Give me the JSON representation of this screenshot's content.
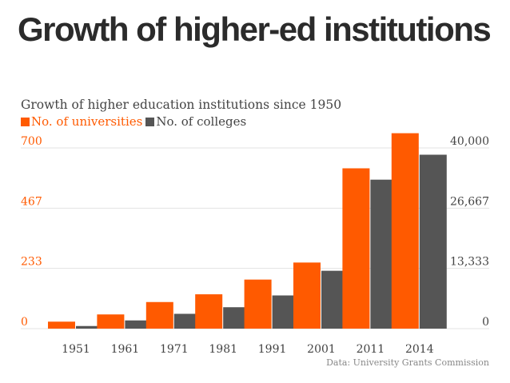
{
  "header": {
    "title": "Growth of higher-ed institutions"
  },
  "chart_data": {
    "type": "bar",
    "title": "Growth of higher education institutions since 1950",
    "categories": [
      "1951",
      "1961",
      "1971",
      "1981",
      "1991",
      "2001",
      "2011",
      "2014"
    ],
    "series": [
      {
        "name": "No. of universities",
        "axis": "left",
        "color": "#ff5a00",
        "values": [
          27,
          55,
          103,
          133,
          190,
          256,
          621,
          757
        ]
      },
      {
        "name": "No. of colleges",
        "axis": "right",
        "color": "#555555",
        "values": [
          578,
          1819,
          3277,
          4738,
          7346,
          12806,
          32974,
          38498
        ]
      }
    ],
    "y_left": {
      "ticks": [
        "0",
        "233",
        "467",
        "700"
      ],
      "range": [
        0,
        700
      ],
      "color": "#ff5a00"
    },
    "y_right": {
      "ticks": [
        "0",
        "13,333",
        "26,667",
        "40,000"
      ],
      "range": [
        0,
        40000
      ],
      "color": "#444444"
    },
    "grid": true,
    "legend_position": "top-left",
    "source": "Data: University Grants Commission"
  }
}
